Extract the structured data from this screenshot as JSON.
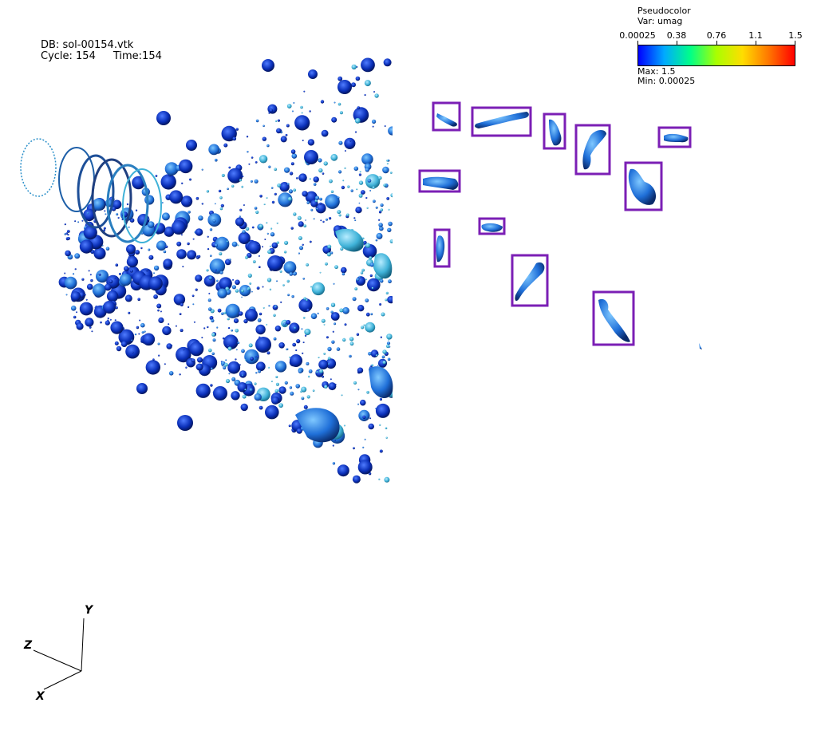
{
  "info": {
    "db": "DB: sol-00154.vtk",
    "cycle": "Cycle: 154",
    "time": "Time:154"
  },
  "legend": {
    "title": "Pseudocolor",
    "var": "Var: umag",
    "ticks": [
      "0.00025",
      "0.38",
      "0.76",
      "1.1",
      "1.5"
    ],
    "max": "Max: 1.5",
    "min": "Min: 0.00025",
    "colors": [
      "#0000ff",
      "#00aaff",
      "#00ff88",
      "#aaff00",
      "#ffdd00",
      "#ff7700",
      "#ff0000"
    ]
  },
  "axes": {
    "x": "X",
    "y": "Y",
    "z": "Z"
  },
  "colors": {
    "highlight_box": "#7b1fb5",
    "droplet_dark": "#0a2fb8",
    "droplet_mid": "#1f6fd8",
    "droplet_light": "#3fb2d8",
    "droplet_edge": "#000033"
  }
}
